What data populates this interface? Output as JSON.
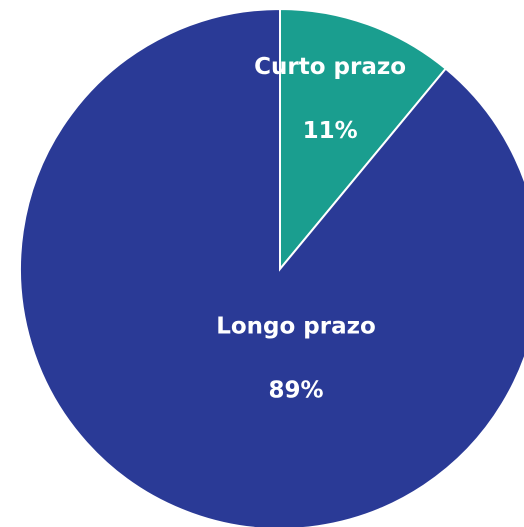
{
  "chart_data": {
    "type": "pie",
    "categories": [
      "Curto prazo",
      "Longo prazo"
    ],
    "values": [
      11,
      89
    ],
    "value_labels": [
      "11%",
      "89%"
    ],
    "colors": [
      "#1a9e8f",
      "#2a3a96"
    ]
  }
}
